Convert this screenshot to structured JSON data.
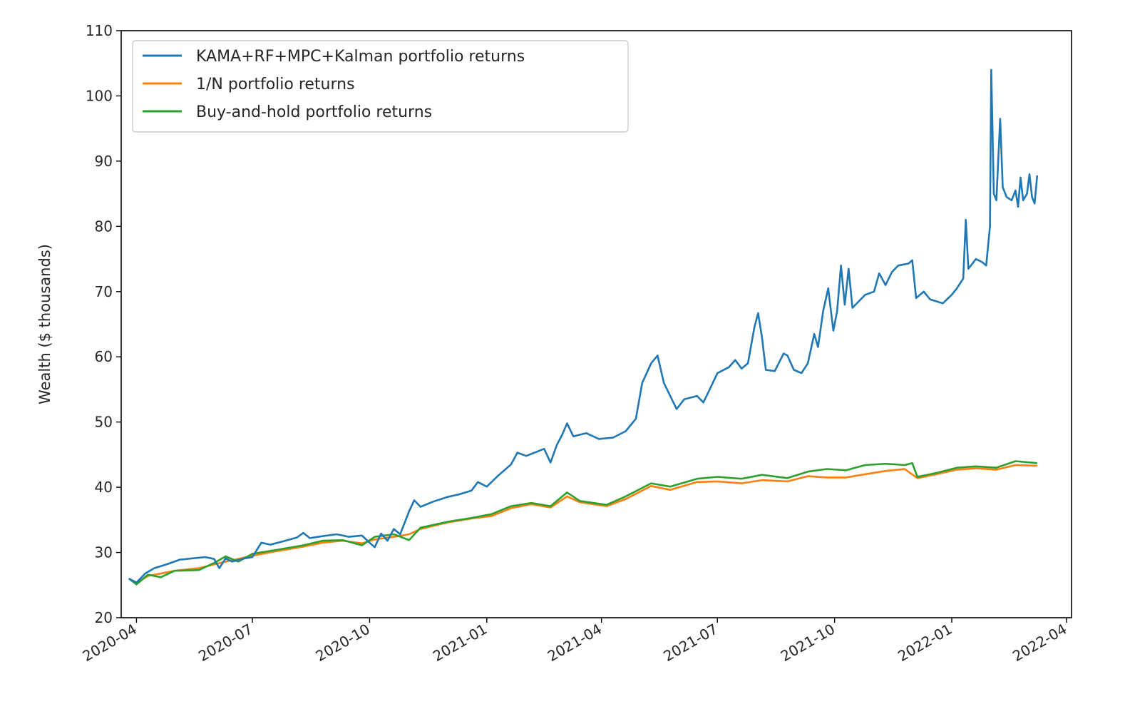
{
  "chart_data": {
    "type": "line",
    "ylabel": "Wealth ($ thousands)",
    "xlabel": "",
    "ylim": [
      20,
      110
    ],
    "yticks": [
      20,
      30,
      40,
      50,
      60,
      70,
      80,
      90,
      100,
      110
    ],
    "xlim": [
      "2020-03-20",
      "2022-04-05"
    ],
    "xticks": [
      "2020-04",
      "2020-07",
      "2020-10",
      "2021-01",
      "2021-04",
      "2021-07",
      "2021-10",
      "2022-01",
      "2022-04"
    ],
    "grid": false,
    "legend_position": "upper-left",
    "series": [
      {
        "name": "KAMA+RF+MPC+Kalman portfolio returns",
        "color": "#1f77b4",
        "points": [
          [
            "2020-03-26",
            26.0
          ],
          [
            "2020-04-01",
            25.4
          ],
          [
            "2020-04-08",
            26.8
          ],
          [
            "2020-04-15",
            27.6
          ],
          [
            "2020-04-25",
            28.2
          ],
          [
            "2020-05-05",
            28.9
          ],
          [
            "2020-05-15",
            29.1
          ],
          [
            "2020-05-25",
            29.3
          ],
          [
            "2020-06-01",
            29.0
          ],
          [
            "2020-06-05",
            27.6
          ],
          [
            "2020-06-10",
            29.1
          ],
          [
            "2020-06-15",
            28.6
          ],
          [
            "2020-06-25",
            29.1
          ],
          [
            "2020-07-01",
            29.3
          ],
          [
            "2020-07-08",
            31.5
          ],
          [
            "2020-07-15",
            31.2
          ],
          [
            "2020-07-25",
            31.7
          ],
          [
            "2020-08-05",
            32.3
          ],
          [
            "2020-08-10",
            33.0
          ],
          [
            "2020-08-15",
            32.2
          ],
          [
            "2020-08-25",
            32.5
          ],
          [
            "2020-09-05",
            32.8
          ],
          [
            "2020-09-15",
            32.4
          ],
          [
            "2020-09-25",
            32.6
          ],
          [
            "2020-10-01",
            31.5
          ],
          [
            "2020-10-05",
            30.8
          ],
          [
            "2020-10-10",
            32.9
          ],
          [
            "2020-10-15",
            31.8
          ],
          [
            "2020-10-20",
            33.6
          ],
          [
            "2020-10-25",
            32.8
          ],
          [
            "2020-11-01",
            36.3
          ],
          [
            "2020-11-05",
            38.0
          ],
          [
            "2020-11-10",
            37.0
          ],
          [
            "2020-11-20",
            37.8
          ],
          [
            "2020-12-01",
            38.5
          ],
          [
            "2020-12-10",
            38.9
          ],
          [
            "2020-12-20",
            39.5
          ],
          [
            "2020-12-25",
            40.8
          ],
          [
            "2021-01-01",
            40.1
          ],
          [
            "2021-01-10",
            41.8
          ],
          [
            "2021-01-20",
            43.5
          ],
          [
            "2021-01-25",
            45.3
          ],
          [
            "2021-02-01",
            44.8
          ],
          [
            "2021-02-10",
            45.5
          ],
          [
            "2021-02-15",
            45.9
          ],
          [
            "2021-02-20",
            43.8
          ],
          [
            "2021-02-25",
            46.5
          ],
          [
            "2021-03-01",
            48.0
          ],
          [
            "2021-03-05",
            49.8
          ],
          [
            "2021-03-10",
            47.8
          ],
          [
            "2021-03-20",
            48.3
          ],
          [
            "2021-03-30",
            47.4
          ],
          [
            "2021-04-10",
            47.6
          ],
          [
            "2021-04-20",
            48.6
          ],
          [
            "2021-04-28",
            50.5
          ],
          [
            "2021-05-03",
            56.0
          ],
          [
            "2021-05-10",
            59.0
          ],
          [
            "2021-05-15",
            60.2
          ],
          [
            "2021-05-20",
            56.0
          ],
          [
            "2021-05-25",
            54.0
          ],
          [
            "2021-05-30",
            52.0
          ],
          [
            "2021-06-05",
            53.5
          ],
          [
            "2021-06-15",
            54.0
          ],
          [
            "2021-06-20",
            53.0
          ],
          [
            "2021-06-25",
            55.0
          ],
          [
            "2021-07-01",
            57.5
          ],
          [
            "2021-07-10",
            58.4
          ],
          [
            "2021-07-15",
            59.5
          ],
          [
            "2021-07-20",
            58.2
          ],
          [
            "2021-07-25",
            59.0
          ],
          [
            "2021-07-30",
            64.5
          ],
          [
            "2021-08-02",
            66.7
          ],
          [
            "2021-08-05",
            63.0
          ],
          [
            "2021-08-08",
            58.0
          ],
          [
            "2021-08-15",
            57.8
          ],
          [
            "2021-08-22",
            60.5
          ],
          [
            "2021-08-25",
            60.2
          ],
          [
            "2021-08-30",
            58.0
          ],
          [
            "2021-09-05",
            57.5
          ],
          [
            "2021-09-10",
            59.0
          ],
          [
            "2021-09-15",
            63.5
          ],
          [
            "2021-09-18",
            61.5
          ],
          [
            "2021-09-22",
            67.0
          ],
          [
            "2021-09-26",
            70.5
          ],
          [
            "2021-09-30",
            64.0
          ],
          [
            "2021-10-03",
            67.0
          ],
          [
            "2021-10-06",
            74.0
          ],
          [
            "2021-10-09",
            68.0
          ],
          [
            "2021-10-12",
            73.5
          ],
          [
            "2021-10-15",
            67.5
          ],
          [
            "2021-10-20",
            68.5
          ],
          [
            "2021-10-25",
            69.5
          ],
          [
            "2021-11-01",
            70.0
          ],
          [
            "2021-11-05",
            72.8
          ],
          [
            "2021-11-10",
            71.0
          ],
          [
            "2021-11-15",
            73.0
          ],
          [
            "2021-11-20",
            74.0
          ],
          [
            "2021-11-28",
            74.3
          ],
          [
            "2021-12-01",
            74.8
          ],
          [
            "2021-12-04",
            69.0
          ],
          [
            "2021-12-10",
            70.0
          ],
          [
            "2021-12-15",
            68.8
          ],
          [
            "2021-12-20",
            68.5
          ],
          [
            "2021-12-25",
            68.2
          ],
          [
            "2022-01-01",
            69.5
          ],
          [
            "2022-01-05",
            70.5
          ],
          [
            "2022-01-10",
            72.0
          ],
          [
            "2022-01-12",
            81.0
          ],
          [
            "2022-01-14",
            73.5
          ],
          [
            "2022-01-20",
            75.0
          ],
          [
            "2022-01-25",
            74.5
          ],
          [
            "2022-01-28",
            74.0
          ],
          [
            "2022-01-31",
            80.0
          ],
          [
            "2022-02-01",
            104.0
          ],
          [
            "2022-02-03",
            85.0
          ],
          [
            "2022-02-05",
            84.0
          ],
          [
            "2022-02-08",
            96.5
          ],
          [
            "2022-02-10",
            86.0
          ],
          [
            "2022-02-13",
            84.5
          ],
          [
            "2022-02-17",
            84.0
          ],
          [
            "2022-02-20",
            85.5
          ],
          [
            "2022-02-22",
            83.0
          ],
          [
            "2022-02-24",
            87.5
          ],
          [
            "2022-02-26",
            84.0
          ],
          [
            "2022-03-01",
            85.0
          ],
          [
            "2022-03-03",
            88.0
          ],
          [
            "2022-03-05",
            84.5
          ],
          [
            "2022-03-07",
            83.5
          ],
          [
            "2022-03-09",
            87.8
          ]
        ]
      },
      {
        "name": "1/N portfolio returns",
        "color": "#ff7f0e",
        "points": [
          [
            "2020-03-26",
            26.0
          ],
          [
            "2020-04-01",
            25.3
          ],
          [
            "2020-04-10",
            26.4
          ],
          [
            "2020-05-01",
            27.2
          ],
          [
            "2020-05-20",
            27.6
          ],
          [
            "2020-06-10",
            28.6
          ],
          [
            "2020-07-01",
            29.5
          ],
          [
            "2020-07-20",
            30.2
          ],
          [
            "2020-08-10",
            30.9
          ],
          [
            "2020-08-25",
            31.5
          ],
          [
            "2020-09-10",
            31.8
          ],
          [
            "2020-09-25",
            31.4
          ],
          [
            "2020-10-05",
            32.0
          ],
          [
            "2020-10-20",
            32.4
          ],
          [
            "2020-11-01",
            32.8
          ],
          [
            "2020-11-10",
            33.6
          ],
          [
            "2020-12-01",
            34.6
          ],
          [
            "2020-12-20",
            35.2
          ],
          [
            "2021-01-05",
            35.6
          ],
          [
            "2021-01-20",
            36.8
          ],
          [
            "2021-02-05",
            37.4
          ],
          [
            "2021-02-20",
            36.9
          ],
          [
            "2021-03-05",
            38.6
          ],
          [
            "2021-03-15",
            37.7
          ],
          [
            "2021-04-05",
            37.1
          ],
          [
            "2021-04-20",
            38.2
          ],
          [
            "2021-05-10",
            40.2
          ],
          [
            "2021-05-25",
            39.6
          ],
          [
            "2021-06-15",
            40.8
          ],
          [
            "2021-07-01",
            40.9
          ],
          [
            "2021-07-20",
            40.6
          ],
          [
            "2021-08-05",
            41.1
          ],
          [
            "2021-08-25",
            40.9
          ],
          [
            "2021-09-10",
            41.7
          ],
          [
            "2021-09-25",
            41.5
          ],
          [
            "2021-10-10",
            41.5
          ],
          [
            "2021-10-25",
            42.0
          ],
          [
            "2021-11-10",
            42.5
          ],
          [
            "2021-11-25",
            42.8
          ],
          [
            "2021-12-05",
            41.4
          ],
          [
            "2021-12-20",
            42.0
          ],
          [
            "2022-01-05",
            42.7
          ],
          [
            "2022-01-20",
            42.9
          ],
          [
            "2022-02-05",
            42.7
          ],
          [
            "2022-02-20",
            43.4
          ],
          [
            "2022-03-09",
            43.3
          ]
        ]
      },
      {
        "name": "Buy-and-hold portfolio returns",
        "color": "#2ca02c",
        "points": [
          [
            "2020-03-26",
            26.0
          ],
          [
            "2020-04-01",
            25.1
          ],
          [
            "2020-04-10",
            26.6
          ],
          [
            "2020-04-20",
            26.2
          ],
          [
            "2020-05-01",
            27.2
          ],
          [
            "2020-05-20",
            27.3
          ],
          [
            "2020-06-01",
            28.4
          ],
          [
            "2020-06-10",
            29.4
          ],
          [
            "2020-06-20",
            28.6
          ],
          [
            "2020-07-01",
            29.8
          ],
          [
            "2020-07-20",
            30.4
          ],
          [
            "2020-08-10",
            31.1
          ],
          [
            "2020-08-25",
            31.8
          ],
          [
            "2020-09-10",
            31.9
          ],
          [
            "2020-09-25",
            31.1
          ],
          [
            "2020-10-05",
            32.4
          ],
          [
            "2020-10-20",
            32.8
          ],
          [
            "2020-11-01",
            31.9
          ],
          [
            "2020-11-10",
            33.8
          ],
          [
            "2020-12-01",
            34.7
          ],
          [
            "2020-12-20",
            35.3
          ],
          [
            "2021-01-05",
            35.9
          ],
          [
            "2021-01-20",
            37.1
          ],
          [
            "2021-02-05",
            37.6
          ],
          [
            "2021-02-20",
            37.1
          ],
          [
            "2021-03-05",
            39.2
          ],
          [
            "2021-03-15",
            37.9
          ],
          [
            "2021-04-05",
            37.3
          ],
          [
            "2021-04-20",
            38.6
          ],
          [
            "2021-05-10",
            40.6
          ],
          [
            "2021-05-25",
            40.1
          ],
          [
            "2021-06-15",
            41.3
          ],
          [
            "2021-07-01",
            41.6
          ],
          [
            "2021-07-20",
            41.3
          ],
          [
            "2021-08-05",
            41.9
          ],
          [
            "2021-08-25",
            41.4
          ],
          [
            "2021-09-10",
            42.4
          ],
          [
            "2021-09-25",
            42.8
          ],
          [
            "2021-10-10",
            42.6
          ],
          [
            "2021-10-25",
            43.4
          ],
          [
            "2021-11-10",
            43.6
          ],
          [
            "2021-11-25",
            43.4
          ],
          [
            "2021-12-01",
            43.7
          ],
          [
            "2021-12-05",
            41.6
          ],
          [
            "2021-12-20",
            42.2
          ],
          [
            "2022-01-05",
            43.0
          ],
          [
            "2022-01-20",
            43.2
          ],
          [
            "2022-02-05",
            43.0
          ],
          [
            "2022-02-20",
            44.0
          ],
          [
            "2022-03-09",
            43.7
          ]
        ]
      }
    ]
  }
}
